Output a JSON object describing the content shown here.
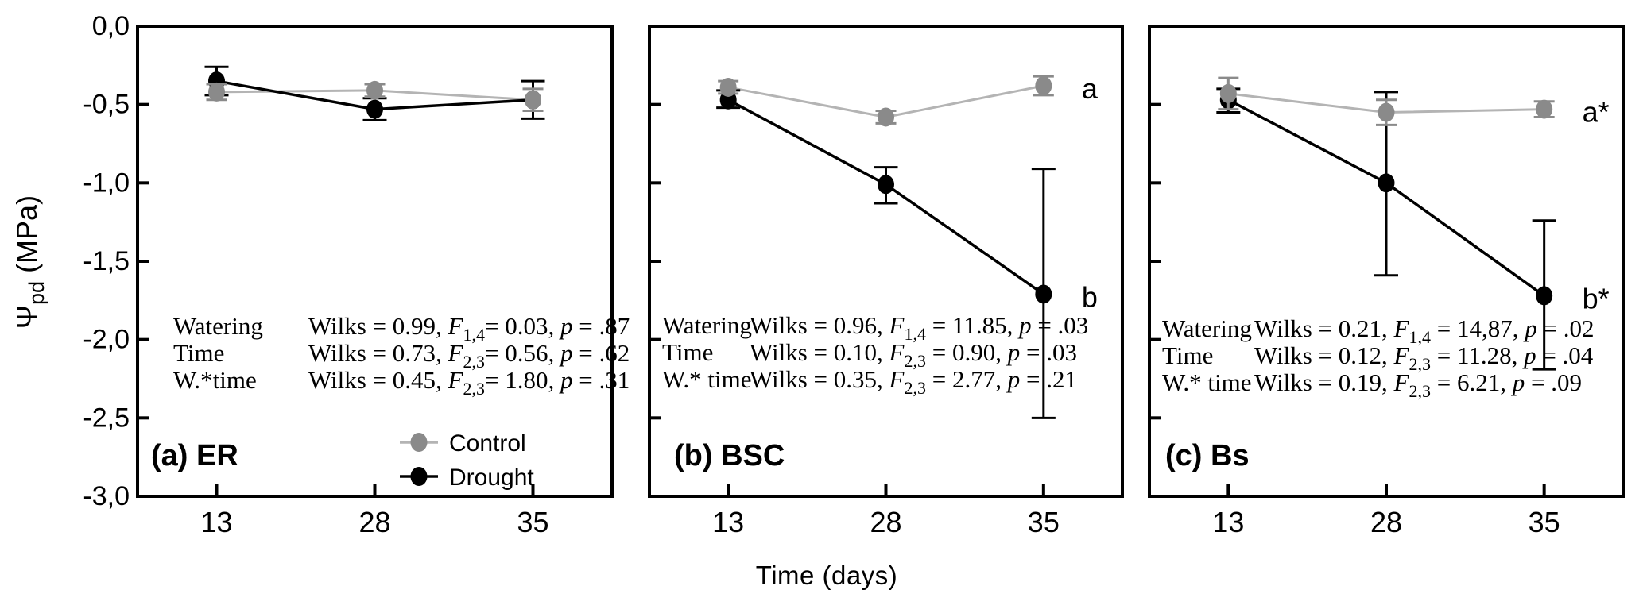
{
  "chart_data": {
    "type": "line",
    "xlabel": "Time (days)",
    "ylabel_parts": {
      "psi": "Ψ",
      "sub": "pd",
      "rest": " (MPa)"
    },
    "x_categories": [
      "13",
      "28",
      "35"
    ],
    "y_ticks": [
      "0,0",
      "-0,5",
      "-1,0",
      "-1,5",
      "-2,0",
      "-2,5",
      "-3,0"
    ],
    "ylim": [
      0,
      -3
    ],
    "grid": false,
    "colors": {
      "control_marker": "#8a8a8a",
      "control_line": "#b4b4b4",
      "drought": "#000000",
      "text": "#000000"
    },
    "legend": {
      "position": "panel-a-bottom",
      "items": [
        {
          "label": "Control",
          "series": "control"
        },
        {
          "label": "Drought",
          "series": "drought"
        }
      ]
    },
    "panels": [
      {
        "id": "a",
        "title": "(a) ER",
        "series": [
          {
            "name": "Control",
            "values": [
              -0.42,
              -0.41,
              -0.47
            ],
            "err_up": [
              0.05,
              0.04,
              0.07
            ],
            "err_down": [
              0.05,
              0.04,
              0.07
            ]
          },
          {
            "name": "Drought",
            "values": [
              -0.35,
              -0.53,
              -0.47
            ],
            "err_up": [
              0.09,
              0.07,
              0.12
            ],
            "err_down": [
              0.09,
              0.07,
              0.12
            ]
          }
        ],
        "stats": [
          {
            "factor": "Watering",
            "pre": "Wilks = 0.99, ",
            "f_sub": "1,4",
            "f_rest": "= 0.03, ",
            "p_rest": " = .87"
          },
          {
            "factor": "Time",
            "pre": "Wilks = 0.73, ",
            "f_sub": "2,3",
            "f_rest": "= 0.56, ",
            "p_rest": " = .62"
          },
          {
            "factor": "W.*time",
            "pre": "Wilks = 0.45, ",
            "f_sub": "2,3",
            "f_rest": "= 1.80, ",
            "p_rest": " = .31"
          }
        ],
        "annotations": []
      },
      {
        "id": "b",
        "title": "(b) BSC",
        "series": [
          {
            "name": "Control",
            "values": [
              -0.39,
              -0.58,
              -0.38
            ],
            "err_up": [
              0.04,
              0.04,
              0.06
            ],
            "err_down": [
              0.04,
              0.04,
              0.06
            ]
          },
          {
            "name": "Drought",
            "values": [
              -0.47,
              -1.01,
              -1.71
            ],
            "err_up": [
              0.06,
              0.11,
              0.8
            ],
            "err_down": [
              0.05,
              0.12,
              0.79
            ]
          }
        ],
        "stats": [
          {
            "factor": "Watering",
            "pre": "Wilks = 0.96, ",
            "f_sub": "1,4",
            "f_rest": " = 11.85, ",
            "p_rest": " = .03"
          },
          {
            "factor": "Time",
            "pre": "Wilks = 0.10, ",
            "f_sub": "2,3",
            "f_rest": " = 0.90, ",
            "p_rest": " = .03"
          },
          {
            "factor": "W.* time",
            "pre": "Wilks = 0.35, ",
            "f_sub": "2,3",
            "f_rest": " = 2.77, ",
            "p_rest": " = .21"
          }
        ],
        "annotations": [
          {
            "text": "a",
            "series": 0,
            "point": 2
          },
          {
            "text": "b",
            "series": 1,
            "point": 2
          }
        ]
      },
      {
        "id": "c",
        "title": "(c) Bs",
        "series": [
          {
            "name": "Control",
            "values": [
              -0.43,
              -0.55,
              -0.53
            ],
            "err_up": [
              0.1,
              0.08,
              0.05
            ],
            "err_down": [
              0.1,
              0.08,
              0.05
            ]
          },
          {
            "name": "Drought",
            "values": [
              -0.47,
              -1.0,
              -1.72
            ],
            "err_up": [
              0.07,
              0.58,
              0.48
            ],
            "err_down": [
              0.08,
              0.59,
              0.47
            ]
          }
        ],
        "stats": [
          {
            "factor": "Watering",
            "pre": "Wilks = 0.21, ",
            "f_sub": "1,4",
            "f_rest": " = 14,87, ",
            "p_rest": " = .02"
          },
          {
            "factor": "Time",
            "pre": "Wilks = 0.12, ",
            "f_sub": "2,3",
            "f_rest": " = 11.28, ",
            "p_rest": " = .04"
          },
          {
            "factor": "W.* time",
            "pre": "Wilks = 0.19, ",
            "f_sub": "2,3",
            "f_rest": " = 6.21, ",
            "p_rest": " = .09"
          }
        ],
        "annotations": [
          {
            "text": "a*",
            "series": 0,
            "point": 2
          },
          {
            "text": "b*",
            "series": 1,
            "point": 2
          }
        ]
      }
    ]
  }
}
